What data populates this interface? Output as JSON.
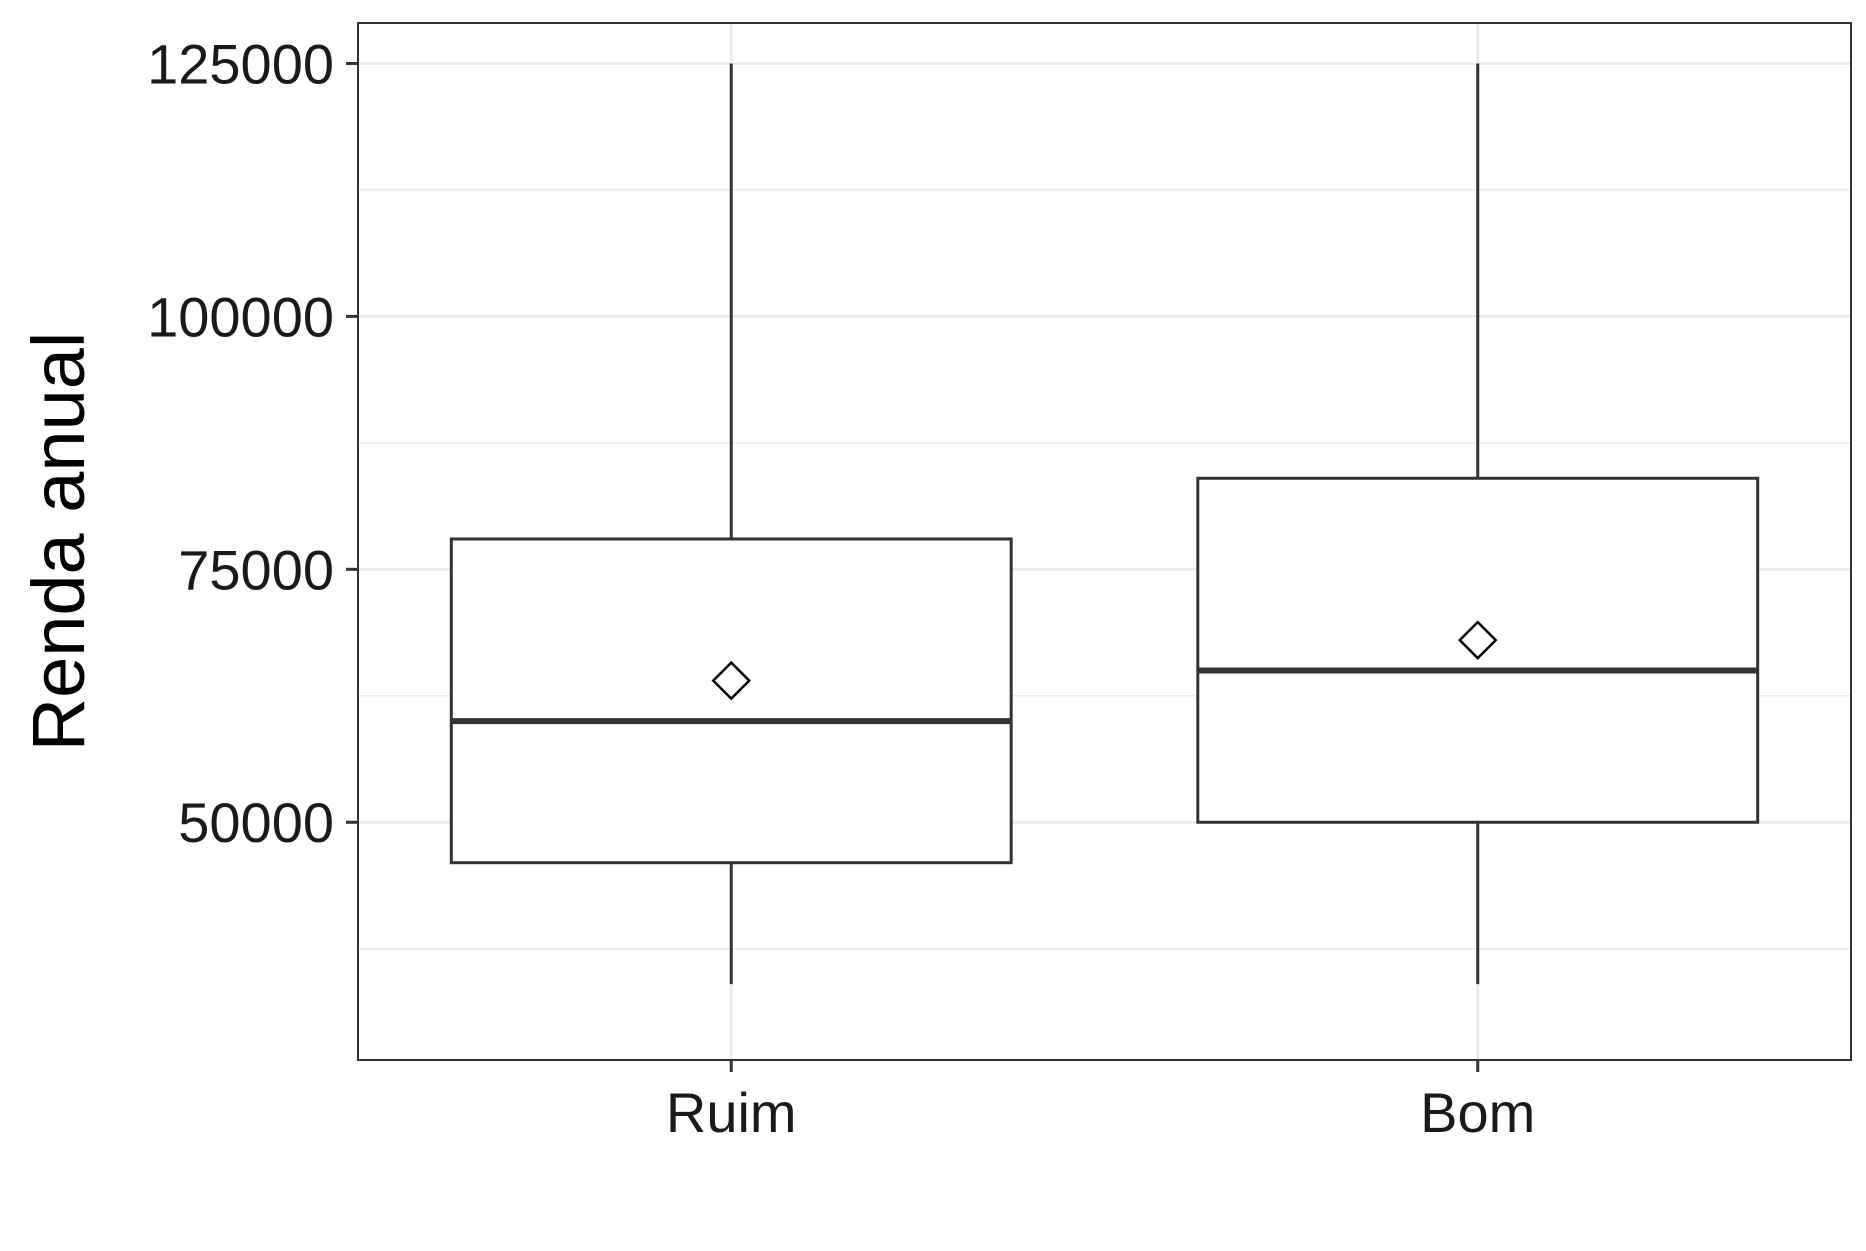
{
  "chart_data": {
    "type": "boxplot",
    "title": "",
    "xlabel": "",
    "ylabel": "Renda anual",
    "categories": [
      "Ruim",
      "Bom"
    ],
    "boxes": [
      {
        "category": "Ruim",
        "whisker_low": 34000,
        "q1": 46000,
        "median": 60000,
        "q3": 78000,
        "whisker_high": 125000,
        "mean": 64000
      },
      {
        "category": "Bom",
        "whisker_low": 34000,
        "q1": 50000,
        "median": 65000,
        "q3": 84000,
        "whisker_high": 125000,
        "mean": 68000
      }
    ],
    "y_ticks": [
      50000,
      75000,
      100000,
      125000
    ],
    "y_minor_ticks": [
      37500,
      62500,
      87500,
      112500
    ],
    "ylim": [
      26500,
      129000
    ],
    "grid": true,
    "legend": "none",
    "colors": {
      "box_line": "#333333",
      "box_fill": "#ffffff",
      "grid": "#ebebeb",
      "panel_border": "#333333",
      "mean_marker": "#000000"
    }
  }
}
